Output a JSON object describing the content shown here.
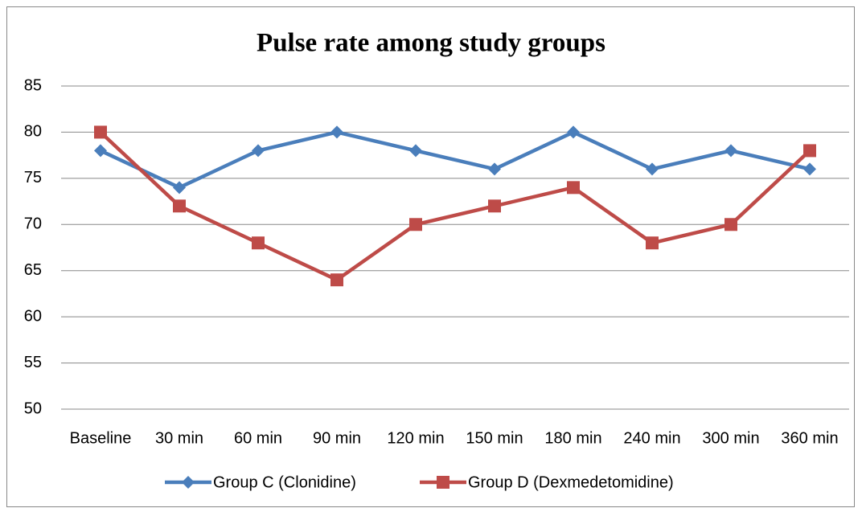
{
  "chart_data": {
    "type": "line",
    "title": "Pulse rate among study groups",
    "categories": [
      "Baseline",
      "30 min",
      "60 min",
      "90 min",
      "120 min",
      "150 min",
      "180 min",
      "240 min",
      "300 min",
      "360 min"
    ],
    "series": [
      {
        "name": "Group C (Clonidine)",
        "color": "#4a7ebb",
        "marker": "diamond",
        "values": [
          78,
          74,
          78,
          80,
          78,
          76,
          80,
          76,
          78,
          76
        ]
      },
      {
        "name": "Group D (Dexmedetomidine)",
        "color": "#be4b48",
        "marker": "square",
        "values": [
          80,
          72,
          68,
          64,
          70,
          72,
          74,
          68,
          70,
          78
        ]
      }
    ],
    "ylim": [
      50,
      85
    ],
    "yticks": [
      50,
      55,
      60,
      65,
      70,
      75,
      80,
      85
    ],
    "grid": true,
    "legend": "bottom"
  }
}
